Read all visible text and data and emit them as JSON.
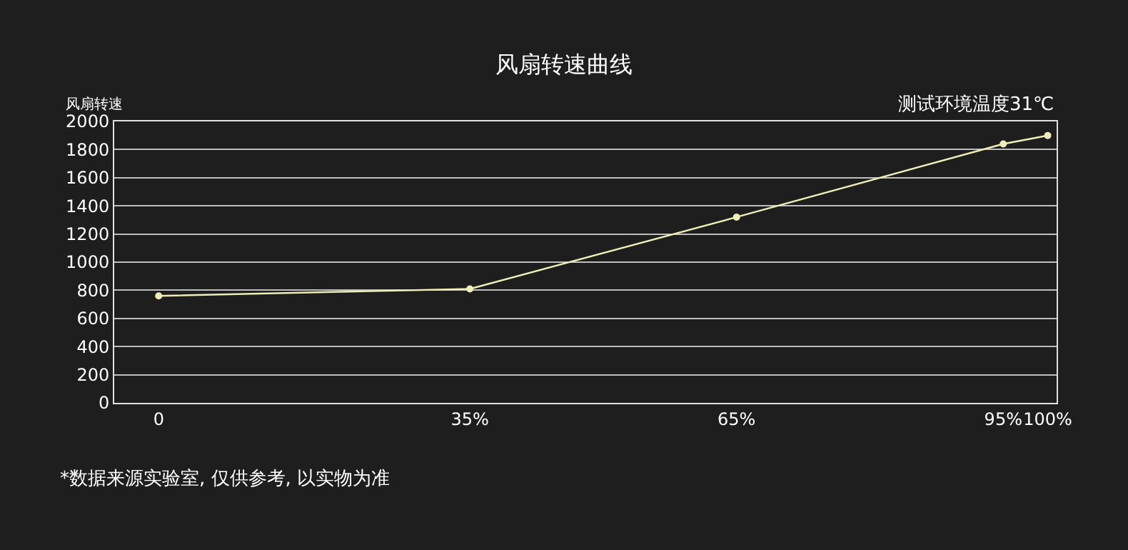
{
  "chart_data": {
    "type": "line",
    "title": "风扇转速曲线",
    "ylabel": "风扇转速",
    "annotations": [
      "测试环境温度31℃",
      "*数据来源实验室, 仅供参考, 以实物为准"
    ],
    "x": [
      0,
      35,
      65,
      95,
      100
    ],
    "series": [
      {
        "color": "#f0eeb8",
        "values": [
          760,
          810,
          1320,
          1840,
          1900
        ]
      }
    ],
    "xlim": [
      -5,
      101
    ],
    "xticks": [
      0,
      {
        "value": 35,
        "label": "35%"
      },
      {
        "value": 65,
        "label": "65%"
      },
      {
        "value": 95,
        "label": "95%"
      },
      {
        "value": 100,
        "label": "100%"
      }
    ],
    "ylim": [
      0,
      2000
    ],
    "yticks": [
      0,
      200,
      400,
      600,
      800,
      1000,
      1200,
      1400,
      1600,
      1800,
      2000
    ],
    "grid": "y",
    "marker": "circle",
    "line_style": "solid"
  }
}
